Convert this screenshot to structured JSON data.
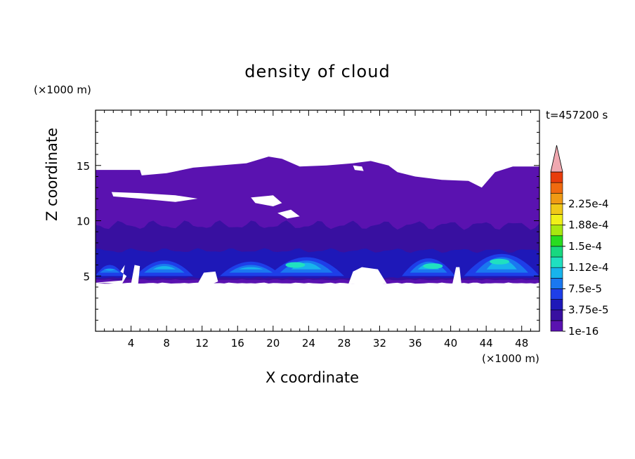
{
  "chart_data": {
    "type": "heatmap",
    "title": "density of cloud",
    "xlabel": "X coordinate",
    "ylabel": "Z coordinate",
    "x_unit": "(×1000 m)",
    "y_unit": "(×1000 m)",
    "time_label": "t=457200 s",
    "xlim": [
      0,
      50
    ],
    "ylim": [
      0,
      20
    ],
    "x_ticks": [
      4,
      8,
      12,
      16,
      20,
      24,
      28,
      32,
      36,
      40,
      44,
      48
    ],
    "y_ticks": [
      5,
      10,
      15
    ],
    "colorbar": {
      "labels": [
        "1e-16",
        "3.75e-5",
        "7.5e-5",
        "1.12e-4",
        "1.5e-4",
        "1.88e-4",
        "2.25e-4"
      ],
      "colors": [
        "#5a12b0",
        "#3810a0",
        "#1e18b8",
        "#1e3ee8",
        "#1a78f0",
        "#18b4ec",
        "#20e0c0",
        "#18d880",
        "#28dc20",
        "#a8e810",
        "#f0f018",
        "#f0c818",
        "#f09a14",
        "#f06a10",
        "#e83c0c",
        "#f0a8b0"
      ],
      "extend": "max"
    },
    "cloud_regions": [
      {
        "level": "1e-16",
        "x_range": [
          0,
          50
        ],
        "z_range": [
          4.5,
          15.8
        ]
      },
      {
        "level": "3.75e-5",
        "x_range": [
          0,
          50
        ],
        "z_range": [
          4.5,
          8.5
        ]
      },
      {
        "level": "7.5e-5",
        "x_range": [
          0,
          50
        ],
        "z_range": [
          4.8,
          7.2
        ]
      },
      {
        "level": "1.12e-4",
        "x_range": [
          0,
          50
        ],
        "z_range": [
          5.0,
          6.5
        ]
      }
    ]
  }
}
